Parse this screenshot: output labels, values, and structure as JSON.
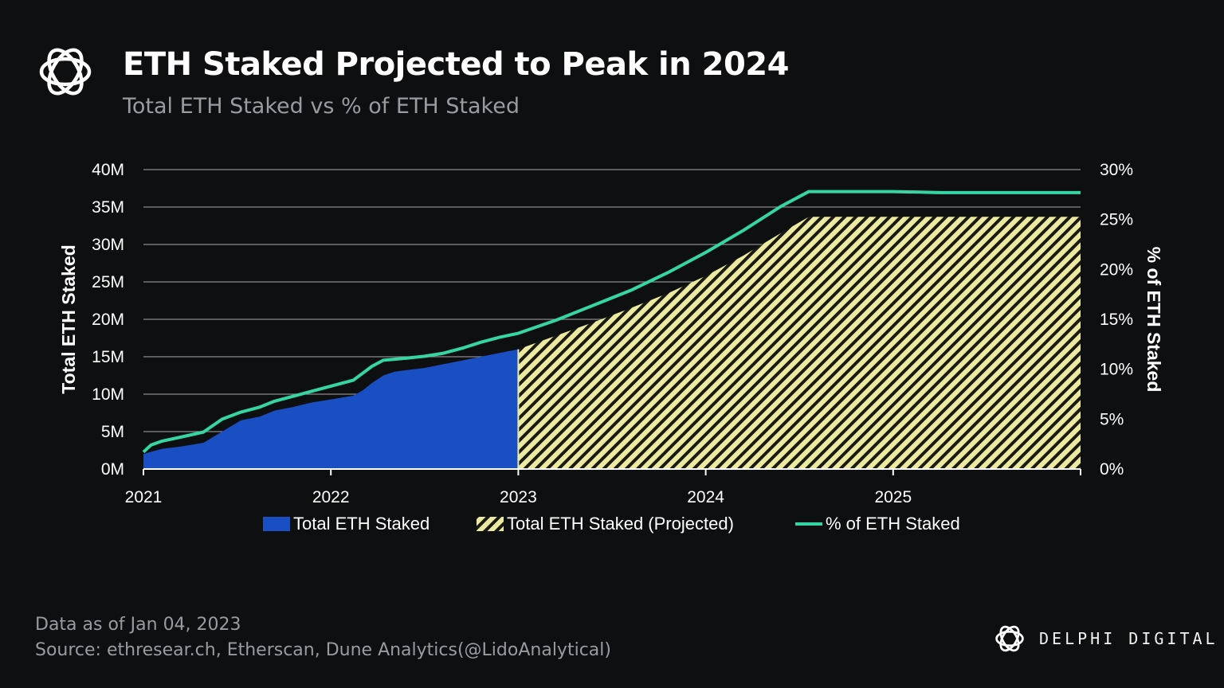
{
  "header": {
    "title": "ETH Staked Projected to Peak in 2024",
    "subtitle": "Total ETH Staked vs % of ETH Staked"
  },
  "footer": {
    "note": "Data as of Jan 04, 2023",
    "source": "Source: ethresear.ch, Etherscan, Dune Analytics(@LidoAnalytical)"
  },
  "brand": {
    "name": "DELPHI DIGITAL",
    "icon": "delphi-flower-icon"
  },
  "colors": {
    "actual": "#1a4fc4",
    "projected_fill": "#ece9a0",
    "projected_hatch": "#1a1a14",
    "pct_line": "#35d5a4",
    "grid": "#8a8a8a"
  },
  "chart_data": {
    "type": "area",
    "xlabel": "",
    "ylabel": "Total ETH Staked",
    "y2label": "% of ETH Staked",
    "xlim": [
      2021.0,
      2026.0
    ],
    "ylim": [
      0,
      40
    ],
    "y2lim": [
      0,
      30
    ],
    "x_ticks": [
      2021,
      2022,
      2023,
      2024,
      2025
    ],
    "y_ticks": [
      "0M",
      "5M",
      "10M",
      "15M",
      "20M",
      "25M",
      "30M",
      "35M",
      "40M"
    ],
    "y2_ticks": [
      "0%",
      "5%",
      "10%",
      "15%",
      "20%",
      "25%",
      "30%"
    ],
    "grid": true,
    "legend_position": "bottom",
    "series": [
      {
        "name": "Total ETH Staked",
        "kind": "area",
        "x": [
          2021.0,
          2021.04,
          2021.1,
          2021.2,
          2021.32,
          2021.42,
          2021.52,
          2021.62,
          2021.7,
          2021.8,
          2021.9,
          2022.0,
          2022.12,
          2022.17,
          2022.22,
          2022.28,
          2022.34,
          2022.4,
          2022.5,
          2022.6,
          2022.7,
          2022.8,
          2022.9,
          2023.0
        ],
        "values": [
          2.0,
          2.3,
          2.7,
          3.0,
          3.5,
          5.0,
          6.5,
          7.0,
          7.8,
          8.3,
          8.9,
          9.3,
          9.8,
          10.5,
          11.5,
          12.5,
          13.0,
          13.2,
          13.5,
          14.0,
          14.5,
          15.0,
          15.5,
          16.0
        ]
      },
      {
        "name": "Total ETH Staked (Projected)",
        "kind": "hatched-area",
        "x": [
          2023.0,
          2023.2,
          2023.4,
          2023.6,
          2023.8,
          2024.0,
          2024.2,
          2024.4,
          2024.55,
          2026.0
        ],
        "values": [
          16.0,
          17.8,
          19.6,
          21.5,
          23.5,
          25.8,
          28.5,
          31.5,
          33.7,
          33.7
        ]
      },
      {
        "name": "% of ETH Staked",
        "kind": "line",
        "axis": "y2",
        "x": [
          2021.0,
          2021.04,
          2021.1,
          2021.2,
          2021.32,
          2021.42,
          2021.52,
          2021.62,
          2021.7,
          2021.8,
          2021.9,
          2022.0,
          2022.12,
          2022.17,
          2022.22,
          2022.28,
          2022.34,
          2022.4,
          2022.5,
          2022.6,
          2022.7,
          2022.8,
          2022.9,
          2023.0,
          2023.2,
          2023.4,
          2023.6,
          2023.8,
          2024.0,
          2024.2,
          2024.4,
          2024.55,
          2025.0,
          2025.25,
          2026.0
        ],
        "values": [
          1.7,
          2.4,
          2.8,
          3.2,
          3.7,
          5.0,
          5.7,
          6.2,
          6.8,
          7.3,
          7.8,
          8.3,
          8.9,
          9.6,
          10.3,
          10.9,
          11.0,
          11.1,
          11.3,
          11.6,
          12.1,
          12.7,
          13.2,
          13.6,
          14.9,
          16.4,
          17.9,
          19.7,
          21.7,
          23.9,
          26.3,
          27.8,
          27.8,
          27.7,
          27.7
        ]
      }
    ]
  }
}
